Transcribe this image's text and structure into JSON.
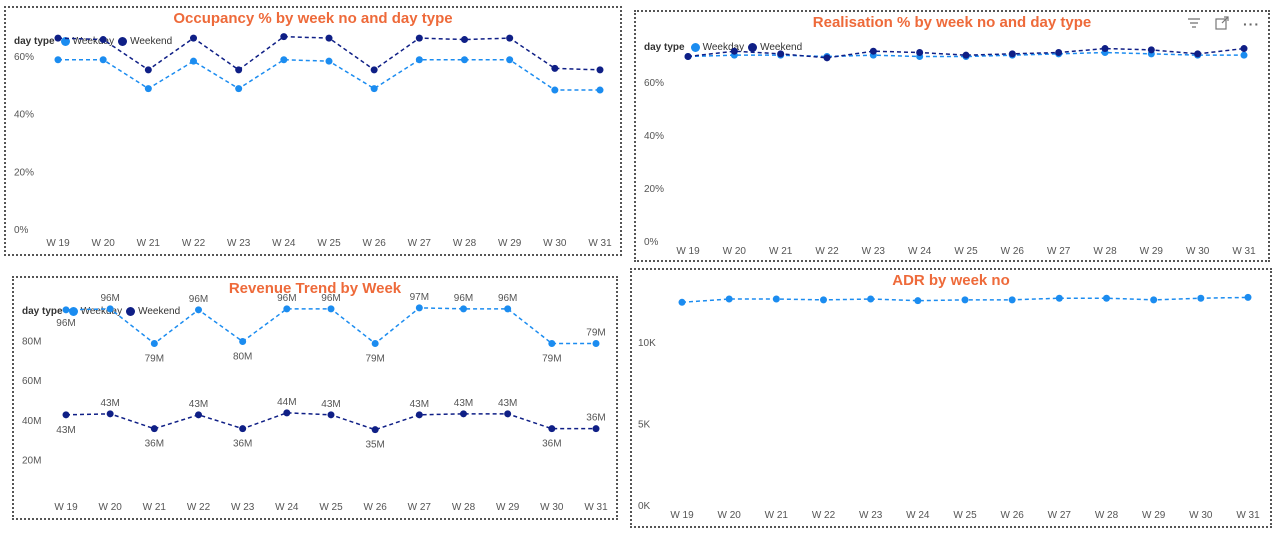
{
  "colors": {
    "weekday": "#1b8cf0",
    "weekend": "#0f1f86",
    "title": "#ee6a3a"
  },
  "legend": {
    "title": "day type",
    "weekday": "Weekday",
    "weekend": "Weekend"
  },
  "toolbar": {
    "filter_icon": "filter-icon",
    "focus_icon": "focus-mode-icon",
    "more_icon": "more-options-icon",
    "more_label": "···"
  },
  "chart_data": [
    {
      "id": "occupancy",
      "type": "line",
      "title": "Occupancy % by week no and day type",
      "categories": [
        "W 19",
        "W 20",
        "W 21",
        "W 22",
        "W 23",
        "W 24",
        "W 25",
        "W 26",
        "W 27",
        "W 28",
        "W 29",
        "W 30",
        "W 31"
      ],
      "yticks": [
        "0%",
        "20%",
        "40%",
        "60%"
      ],
      "ylim": [
        0,
        0.7
      ],
      "series": [
        {
          "name": "Weekday",
          "values": [
            0.59,
            0.59,
            0.49,
            0.585,
            0.49,
            0.59,
            0.585,
            0.49,
            0.59,
            0.59,
            0.59,
            0.485,
            0.485
          ]
        },
        {
          "name": "Weekend",
          "values": [
            0.665,
            0.66,
            0.555,
            0.665,
            0.555,
            0.67,
            0.665,
            0.555,
            0.665,
            0.66,
            0.665,
            0.56,
            0.555
          ]
        }
      ],
      "legend_position": "top-left"
    },
    {
      "id": "realisation",
      "type": "line",
      "title": "Realisation % by week no and day type",
      "categories": [
        "W 19",
        "W 20",
        "W 21",
        "W 22",
        "W 23",
        "W 24",
        "W 25",
        "W 26",
        "W 27",
        "W 28",
        "W 29",
        "W 30",
        "W 31"
      ],
      "yticks": [
        "0%",
        "20%",
        "40%",
        "60%"
      ],
      "ylim": [
        0,
        0.8
      ],
      "series": [
        {
          "name": "Weekday",
          "values": [
            0.7,
            0.705,
            0.705,
            0.7,
            0.705,
            0.7,
            0.7,
            0.705,
            0.71,
            0.715,
            0.71,
            0.705,
            0.705
          ]
        },
        {
          "name": "Weekend",
          "values": [
            0.7,
            0.72,
            0.71,
            0.695,
            0.72,
            0.715,
            0.705,
            0.71,
            0.715,
            0.73,
            0.725,
            0.71,
            0.73
          ]
        }
      ],
      "legend_position": "top-left"
    },
    {
      "id": "revenue",
      "type": "line",
      "title": "Revenue Trend by Week",
      "categories": [
        "W 19",
        "W 20",
        "W 21",
        "W 22",
        "W 23",
        "W 24",
        "W 25",
        "W 26",
        "W 27",
        "W 28",
        "W 29",
        "W 30",
        "W 31"
      ],
      "yticks": [
        "20M",
        "40M",
        "60M",
        "80M"
      ],
      "ylim": [
        0,
        105
      ],
      "series": [
        {
          "name": "Weekday",
          "values": [
            96,
            96.5,
            79,
            96,
            80,
            96.5,
            96.5,
            79,
            97,
            96.5,
            96.5,
            79,
            79
          ],
          "labels": [
            "96M",
            "96M",
            "79M",
            "96M",
            "80M",
            "96M",
            "96M",
            "79M",
            "97M",
            "96M",
            "96M",
            "79M",
            "79M"
          ]
        },
        {
          "name": "Weekend",
          "values": [
            43,
            43.5,
            36,
            43,
            36,
            44,
            43,
            35.5,
            43,
            43.5,
            43.5,
            36,
            36
          ],
          "labels": [
            "43M",
            "43M",
            "36M",
            "43M",
            "36M",
            "44M",
            "43M",
            "35M",
            "43M",
            "43M",
            "43M",
            "36M",
            "36M"
          ]
        }
      ],
      "legend_position": "top-left"
    },
    {
      "id": "adr",
      "type": "line",
      "title": "ADR by week no",
      "categories": [
        "W 19",
        "W 20",
        "W 21",
        "W 22",
        "W 23",
        "W 24",
        "W 25",
        "W 26",
        "W 27",
        "W 28",
        "W 29",
        "W 30",
        "W 31"
      ],
      "yticks": [
        "0K",
        "5K",
        "10K"
      ],
      "ylim": [
        0,
        13500
      ],
      "series": [
        {
          "name": "ADR",
          "values": [
            12500,
            12700,
            12700,
            12650,
            12700,
            12600,
            12650,
            12650,
            12750,
            12750,
            12650,
            12750,
            12800
          ]
        }
      ]
    }
  ]
}
